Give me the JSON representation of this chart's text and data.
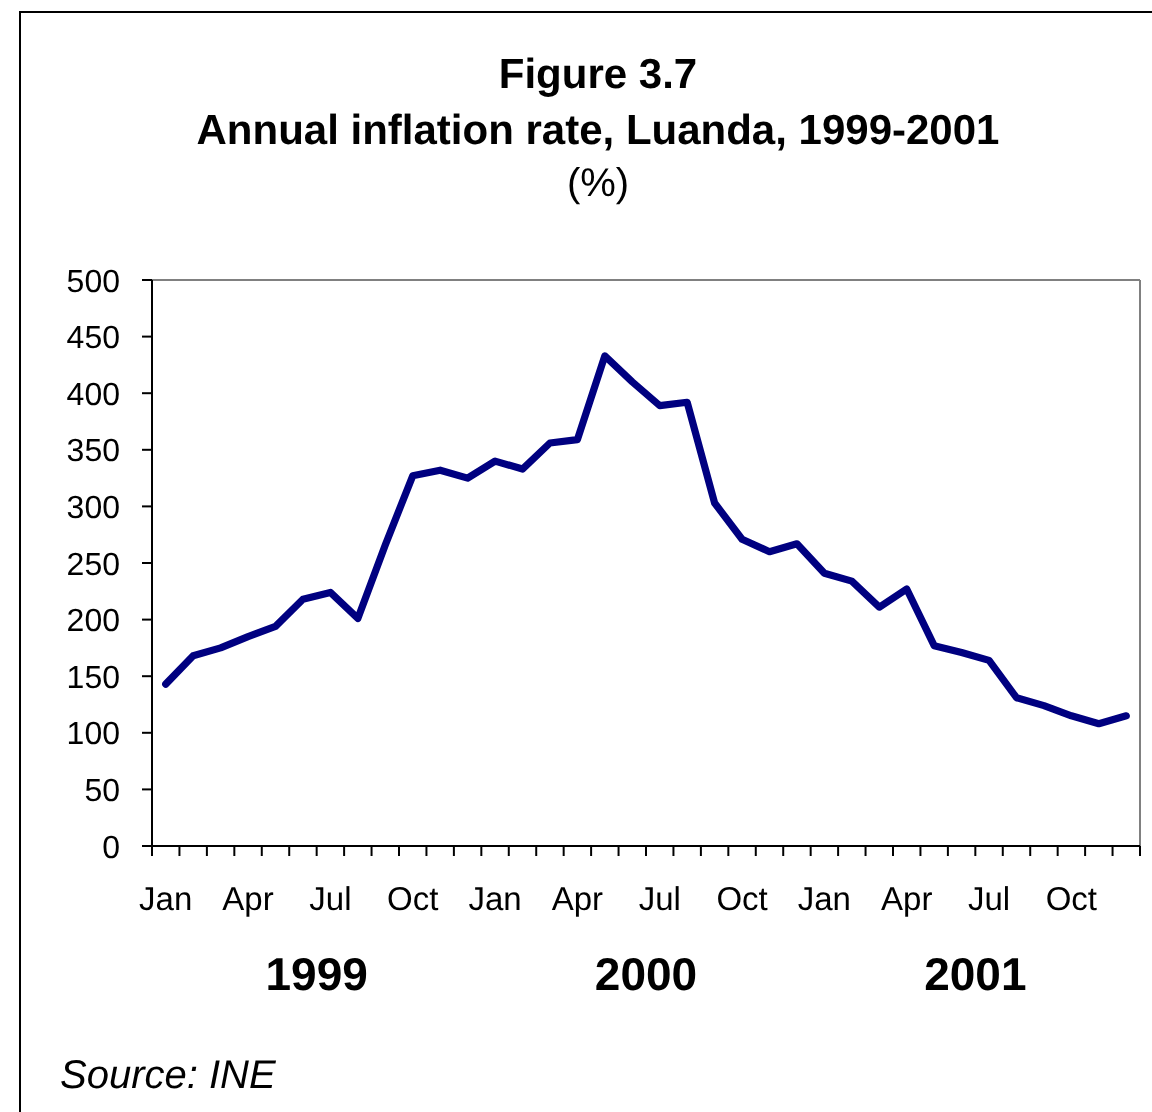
{
  "chart_data": {
    "type": "line",
    "title": "Figure 3.7\nAnnual inflation rate, Luanda, 1999-2001",
    "subtitle": "(%)",
    "categories": [
      "Jan",
      null,
      null,
      "Apr",
      null,
      null,
      "Jul",
      null,
      null,
      "Oct",
      null,
      null,
      "Jan",
      null,
      null,
      "Apr",
      null,
      null,
      "Jul",
      null,
      null,
      "Oct",
      null,
      null,
      "Jan",
      null,
      null,
      "Apr",
      null,
      null,
      "Jul",
      null,
      null,
      "Oct",
      null,
      null
    ],
    "values": [
      143,
      168,
      175,
      185,
      194,
      218,
      224,
      201,
      266,
      327,
      332,
      325,
      340,
      333,
      356,
      359,
      433,
      410,
      389,
      392,
      303,
      271,
      260,
      267,
      241,
      234,
      211,
      227,
      177,
      171,
      164,
      131,
      124,
      115,
      108,
      115
    ],
    "color": "#000080",
    "ylim": [
      0,
      500
    ],
    "yticks": [
      0,
      50,
      100,
      150,
      200,
      250,
      300,
      350,
      400,
      450,
      500
    ],
    "annotations": [
      "1999",
      "2000",
      "2001",
      "Source: INE"
    ]
  }
}
